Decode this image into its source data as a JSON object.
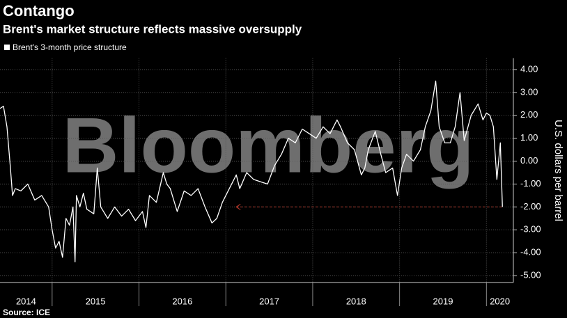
{
  "chart_data": {
    "type": "line",
    "title": "Contango",
    "subtitle": "Brent's market structure reflects massive oversupply",
    "watermark": "Bloomberg",
    "source": "Source: ICE",
    "y_label": "U.S. dollars per barrel",
    "legend_position": "top-left",
    "grid": true,
    "xlim": [
      2014.4,
      2020.31
    ],
    "xticks": [
      {
        "value": 2014,
        "label": "2014"
      },
      {
        "value": 2015,
        "label": "2015"
      },
      {
        "value": 2016,
        "label": "2016"
      },
      {
        "value": 2017,
        "label": "2017"
      },
      {
        "value": 2018,
        "label": "2018"
      },
      {
        "value": 2019,
        "label": "2019"
      },
      {
        "value": 2020,
        "label": "2020"
      }
    ],
    "ylim": [
      -5.3,
      4.5
    ],
    "yticks": [
      {
        "value": 4,
        "label": "4.00"
      },
      {
        "value": 3,
        "label": "3.00"
      },
      {
        "value": 2,
        "label": "2.00"
      },
      {
        "value": 1,
        "label": "1.00"
      },
      {
        "value": 0,
        "label": "0.00"
      },
      {
        "value": -1,
        "label": "-1.00"
      },
      {
        "value": -2,
        "label": "-2.00"
      },
      {
        "value": -3,
        "label": "-3.00"
      },
      {
        "value": -4,
        "label": "-4.00"
      },
      {
        "value": -5,
        "label": "-5.00"
      }
    ],
    "reference_line": {
      "value": -2,
      "x": [
        2017.12,
        2020.184
      ],
      "color": "#c0392b"
    },
    "series": [
      {
        "name": "Brent's 3-month price structure",
        "color": "#ffffff",
        "x": [
          2014.4,
          2014.44,
          2014.48,
          2014.52,
          2014.544,
          2014.576,
          2014.64,
          2014.72,
          2014.8,
          2014.88,
          2014.96,
          2015.0,
          2015.04,
          2015.08,
          2015.12,
          2015.16,
          2015.2,
          2015.24,
          2015.264,
          2015.28,
          2015.32,
          2015.36,
          2015.4,
          2015.48,
          2015.52,
          2015.56,
          2015.64,
          2015.72,
          2015.8,
          2015.88,
          2015.96,
          2016.04,
          2016.08,
          2016.12,
          2016.2,
          2016.28,
          2016.32,
          2016.36,
          2016.44,
          2016.52,
          2016.6,
          2016.68,
          2016.76,
          2016.84,
          2016.896,
          2016.96,
          2017.04,
          2017.12,
          2017.16,
          2017.24,
          2017.32,
          2017.4,
          2017.48,
          2017.56,
          2017.64,
          2017.72,
          2017.8,
          2017.88,
          2017.96,
          2018.04,
          2018.12,
          2018.2,
          2018.28,
          2018.32,
          2018.4,
          2018.48,
          2018.56,
          2018.6,
          2018.64,
          2018.72,
          2018.784,
          2018.84,
          2018.92,
          2018.976,
          2019.024,
          2019.08,
          2019.16,
          2019.24,
          2019.296,
          2019.36,
          2019.416,
          2019.456,
          2019.52,
          2019.584,
          2019.64,
          2019.696,
          2019.744,
          2019.824,
          2019.904,
          2019.96,
          2020.0,
          2020.04,
          2020.08,
          2020.12,
          2020.16,
          2020.184
        ],
        "values": [
          2.3,
          2.4,
          1.5,
          -0.3,
          -1.5,
          -1.2,
          -1.3,
          -1.0,
          -1.7,
          -1.5,
          -2.0,
          -3.0,
          -3.8,
          -3.5,
          -4.2,
          -2.5,
          -2.8,
          -2.0,
          -4.4,
          -1.5,
          -2.0,
          -1.4,
          -2.1,
          -2.3,
          -0.3,
          -2.0,
          -2.5,
          -2.0,
          -2.4,
          -2.1,
          -2.6,
          -2.2,
          -2.9,
          -1.5,
          -1.8,
          -0.5,
          -1.0,
          -1.2,
          -2.2,
          -1.3,
          -1.5,
          -1.2,
          -2.0,
          -2.7,
          -2.5,
          -1.8,
          -1.2,
          -0.6,
          -1.2,
          -0.5,
          -0.8,
          -0.9,
          -1.0,
          -0.2,
          0.3,
          1.0,
          0.8,
          1.4,
          1.2,
          1.0,
          1.5,
          1.2,
          1.8,
          1.5,
          0.8,
          0.5,
          -0.6,
          -0.3,
          0.5,
          1.3,
          0.3,
          -0.5,
          -0.3,
          -1.5,
          -0.3,
          0.3,
          0.0,
          0.5,
          1.5,
          2.2,
          3.5,
          1.5,
          0.8,
          0.8,
          1.5,
          3.0,
          0.9,
          2.0,
          2.5,
          1.8,
          2.1,
          2.0,
          1.5,
          -0.8,
          0.8,
          -2.0
        ]
      }
    ]
  }
}
